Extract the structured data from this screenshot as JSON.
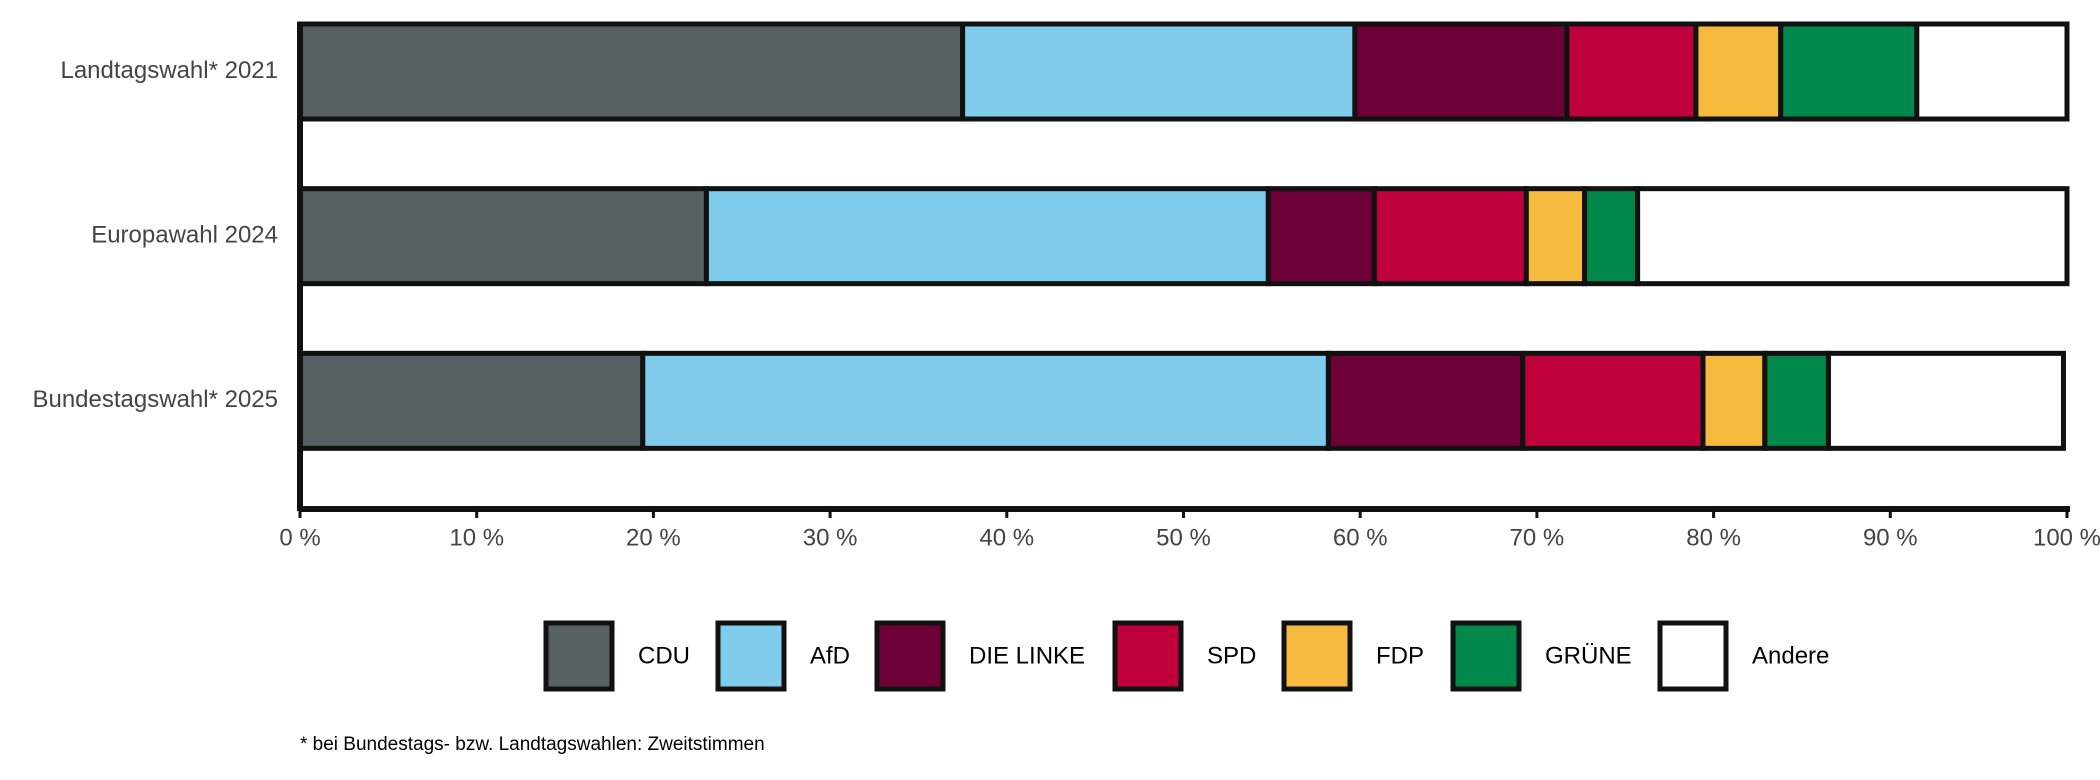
{
  "chart_data": {
    "type": "stacked-bar-horizontal",
    "categories": [
      "Landtagswahl* 2021",
      "Europawahl 2024",
      "Bundestagswahl* 2025"
    ],
    "series": [
      {
        "name": "CDU",
        "color": "#576062",
        "values": [
          37.5,
          23.0,
          19.4
        ]
      },
      {
        "name": "AfD",
        "color": "#80cced",
        "values": [
          22.2,
          31.8,
          38.8
        ]
      },
      {
        "name": "DIE LINKE",
        "color": "#6e0038",
        "values": [
          12.0,
          6.0,
          11.0
        ]
      },
      {
        "name": "SPD",
        "color": "#c0003c",
        "values": [
          7.3,
          8.6,
          10.2
        ]
      },
      {
        "name": "FDP",
        "color": "#f6bb3e",
        "values": [
          4.8,
          3.3,
          3.5
        ]
      },
      {
        "name": "GRÜNE",
        "color": "#00874a",
        "values": [
          7.7,
          3.0,
          3.6
        ]
      },
      {
        "name": "Andere",
        "color": "#ffffff",
        "values": [
          8.5,
          24.3,
          13.3
        ]
      }
    ],
    "xlim": [
      0,
      100
    ],
    "xticks": [
      {
        "value": 0,
        "label": "0 %"
      },
      {
        "value": 10,
        "label": "10 %"
      },
      {
        "value": 20,
        "label": "20 %"
      },
      {
        "value": 30,
        "label": "30 %"
      },
      {
        "value": 40,
        "label": "40 %"
      },
      {
        "value": 50,
        "label": "50 %"
      },
      {
        "value": 60,
        "label": "60 %"
      },
      {
        "value": 70,
        "label": "70 %"
      },
      {
        "value": 80,
        "label": "80 %"
      },
      {
        "value": 90,
        "label": "90 %"
      },
      {
        "value": 100,
        "label": "100 %"
      }
    ],
    "footnote": "* bei Bundestags- bzw. Landtagswahlen: Zweitstimmen"
  }
}
